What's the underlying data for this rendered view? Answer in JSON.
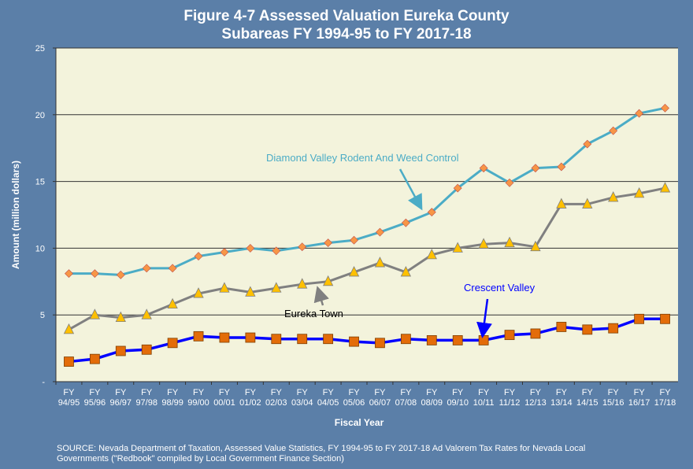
{
  "chart_data": {
    "type": "line",
    "title_line1": "Figure 4-7 Assessed Valuation Eureka County",
    "title_line2": "Subareas FY 1994-95 to FY 2017-18",
    "xlabel": "Fiscal Year",
    "ylabel": "Amount (million dollars)",
    "ylim": [
      0,
      25
    ],
    "yticks": [
      "-",
      "5",
      "10",
      "15",
      "20",
      "25"
    ],
    "ytick_values": [
      0,
      5,
      10,
      15,
      20,
      25
    ],
    "grid": true,
    "categories_top": [
      "FY",
      "FY",
      "FY",
      "FY",
      "FY",
      "FY",
      "FY",
      "FY",
      "FY",
      "FY",
      "FY",
      "FY",
      "FY",
      "FY",
      "FY",
      "FY",
      "FY",
      "FY",
      "FY",
      "FY",
      "FY",
      "FY",
      "FY",
      "FY"
    ],
    "categories": [
      "94/95",
      "95/96",
      "96/97",
      "97/98",
      "98/99",
      "99/00",
      "00/01",
      "01/02",
      "02/03",
      "03/04",
      "04/05",
      "05/06",
      "06/07",
      "07/08",
      "08/09",
      "09/10",
      "10/11",
      "11/12",
      "12/13",
      "13/14",
      "14/15",
      "15/16",
      "16/17",
      "17/18"
    ],
    "series": [
      {
        "name": "Diamond Valley Rodent And Weed Control",
        "color": "#4bacc6",
        "marker_color": "#f79646",
        "marker": "diamond",
        "values": [
          8.1,
          8.1,
          8.0,
          8.5,
          8.5,
          9.4,
          9.7,
          10.0,
          9.8,
          10.1,
          10.4,
          10.6,
          11.2,
          11.9,
          12.7,
          14.5,
          16.0,
          14.9,
          16.0,
          16.1,
          17.8,
          18.8,
          20.1,
          20.5
        ]
      },
      {
        "name": "Eureka Town",
        "color": "#808080",
        "marker_color": "#ffc000",
        "marker": "triangle",
        "values": [
          3.9,
          5.0,
          4.8,
          5.0,
          5.8,
          6.6,
          7.0,
          6.7,
          7.0,
          7.3,
          7.5,
          8.2,
          8.9,
          8.2,
          9.5,
          10.0,
          10.3,
          10.4,
          10.1,
          13.3,
          13.3,
          13.8,
          14.1,
          14.5
        ]
      },
      {
        "name": "Crescent Valley",
        "color": "#0000ff",
        "marker_color": "#e36c09",
        "marker": "square",
        "values": [
          1.5,
          1.7,
          2.3,
          2.4,
          2.9,
          3.4,
          3.3,
          3.3,
          3.2,
          3.2,
          3.2,
          3.0,
          2.9,
          3.2,
          3.1,
          3.1,
          3.1,
          3.5,
          3.6,
          4.1,
          3.9,
          4.0,
          4.7,
          4.7
        ]
      }
    ],
    "annotations": [
      {
        "text": "Diamond Valley Rodent And Weed Control",
        "color": "#4bacc6",
        "points_to": "08/09"
      },
      {
        "text": "Eureka Town",
        "color": "#000000",
        "points_to": "04/05"
      },
      {
        "text": "Crescent Valley",
        "color": "#0000ff",
        "points_to": "10/11"
      }
    ]
  },
  "source_line1": "SOURCE: Nevada Department of Taxation, Assessed Value Statistics, FY 1994-95 to FY 2017-18  Ad Valorem Tax Rates for Nevada Local",
  "source_line2": "Governments (\"Redbook\" compiled by Local Government Finance Section)"
}
